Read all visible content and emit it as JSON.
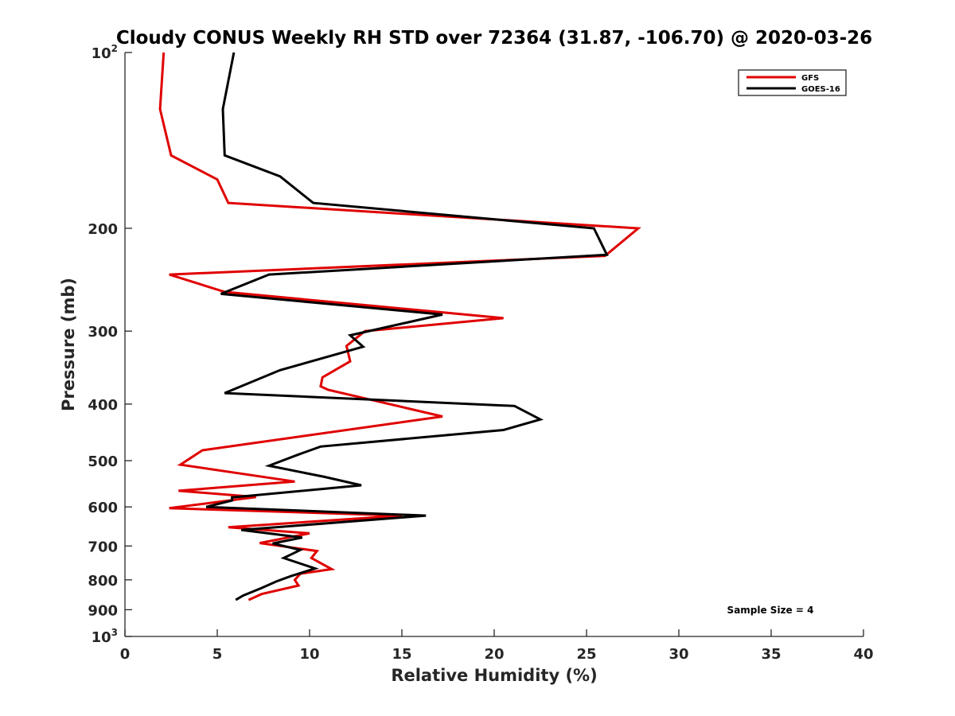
{
  "chart_data": {
    "type": "line",
    "title": "Cloudy CONUS Weekly RH STD over 72364 (31.87, -106.70) @ 2020-03-26",
    "xlabel": "Relative Humidity (%)",
    "ylabel": "Pressure (mb)",
    "xlim": [
      0,
      40
    ],
    "ylim": [
      100,
      1000
    ],
    "yscale": "log",
    "y_reversed": true,
    "x_ticks": [
      "0",
      "5",
      "10",
      "15",
      "20",
      "25",
      "30",
      "35",
      "40"
    ],
    "y_ticks": [
      {
        "value": 100,
        "base": "10",
        "exp": "2"
      },
      {
        "value": 200,
        "label": "200"
      },
      {
        "value": 300,
        "label": "300"
      },
      {
        "value": 400,
        "label": "400"
      },
      {
        "value": 500,
        "label": "500"
      },
      {
        "value": 600,
        "label": "600"
      },
      {
        "value": 700,
        "label": "700"
      },
      {
        "value": 800,
        "label": "800"
      },
      {
        "value": 900,
        "label": "900"
      },
      {
        "value": 1000,
        "base": "10",
        "exp": "3"
      }
    ],
    "legend_position": "top-right",
    "annotation": "Sample Size = 4",
    "series": [
      {
        "name": "GFS",
        "color": "#e00000",
        "points": [
          [
            2.1,
            100
          ],
          [
            1.9,
            125
          ],
          [
            2.5,
            150
          ],
          [
            5.0,
            165
          ],
          [
            5.6,
            181
          ],
          [
            27.8,
            200
          ],
          [
            26.0,
            223
          ],
          [
            2.4,
            240
          ],
          [
            5.4,
            257
          ],
          [
            20.5,
            285
          ],
          [
            13.0,
            300
          ],
          [
            12.0,
            318
          ],
          [
            12.2,
            338
          ],
          [
            10.7,
            360
          ],
          [
            10.6,
            373
          ],
          [
            11.0,
            378
          ],
          [
            17.2,
            420
          ],
          [
            4.2,
            480
          ],
          [
            3.0,
            508
          ],
          [
            9.2,
            543
          ],
          [
            2.9,
            563
          ],
          [
            7.1,
            577
          ],
          [
            2.4,
            603
          ],
          [
            15.0,
            621
          ],
          [
            5.6,
            650
          ],
          [
            10.0,
            666
          ],
          [
            7.3,
            692
          ],
          [
            10.4,
            714
          ],
          [
            10.1,
            734
          ],
          [
            11.2,
            767
          ],
          [
            9.5,
            781
          ],
          [
            9.2,
            800
          ],
          [
            9.4,
            818
          ],
          [
            7.4,
            846
          ],
          [
            6.7,
            866
          ]
        ]
      },
      {
        "name": "GOES-16",
        "color": "#000000",
        "points": [
          [
            5.9,
            100
          ],
          [
            5.3,
            125
          ],
          [
            5.4,
            150
          ],
          [
            8.4,
            163
          ],
          [
            10.2,
            181
          ],
          [
            25.4,
            200
          ],
          [
            26.1,
            222
          ],
          [
            7.8,
            240
          ],
          [
            5.2,
            259
          ],
          [
            17.2,
            281
          ],
          [
            12.2,
            305
          ],
          [
            12.9,
            319
          ],
          [
            8.4,
            350
          ],
          [
            5.4,
            383
          ],
          [
            21.1,
            403
          ],
          [
            22.5,
            425
          ],
          [
            20.5,
            443
          ],
          [
            10.6,
            473
          ],
          [
            9.4,
            488
          ],
          [
            7.8,
            510
          ],
          [
            10.8,
            533
          ],
          [
            12.8,
            551
          ],
          [
            5.8,
            578
          ],
          [
            5.8,
            585
          ],
          [
            4.4,
            600
          ],
          [
            16.3,
            621
          ],
          [
            6.3,
            657
          ],
          [
            9.6,
            677
          ],
          [
            8.0,
            693
          ],
          [
            9.5,
            711
          ],
          [
            8.6,
            734
          ],
          [
            10.3,
            765
          ],
          [
            9.0,
            788
          ],
          [
            8.2,
            805
          ],
          [
            7.4,
            826
          ],
          [
            6.4,
            851
          ],
          [
            6.0,
            866
          ]
        ]
      }
    ]
  }
}
